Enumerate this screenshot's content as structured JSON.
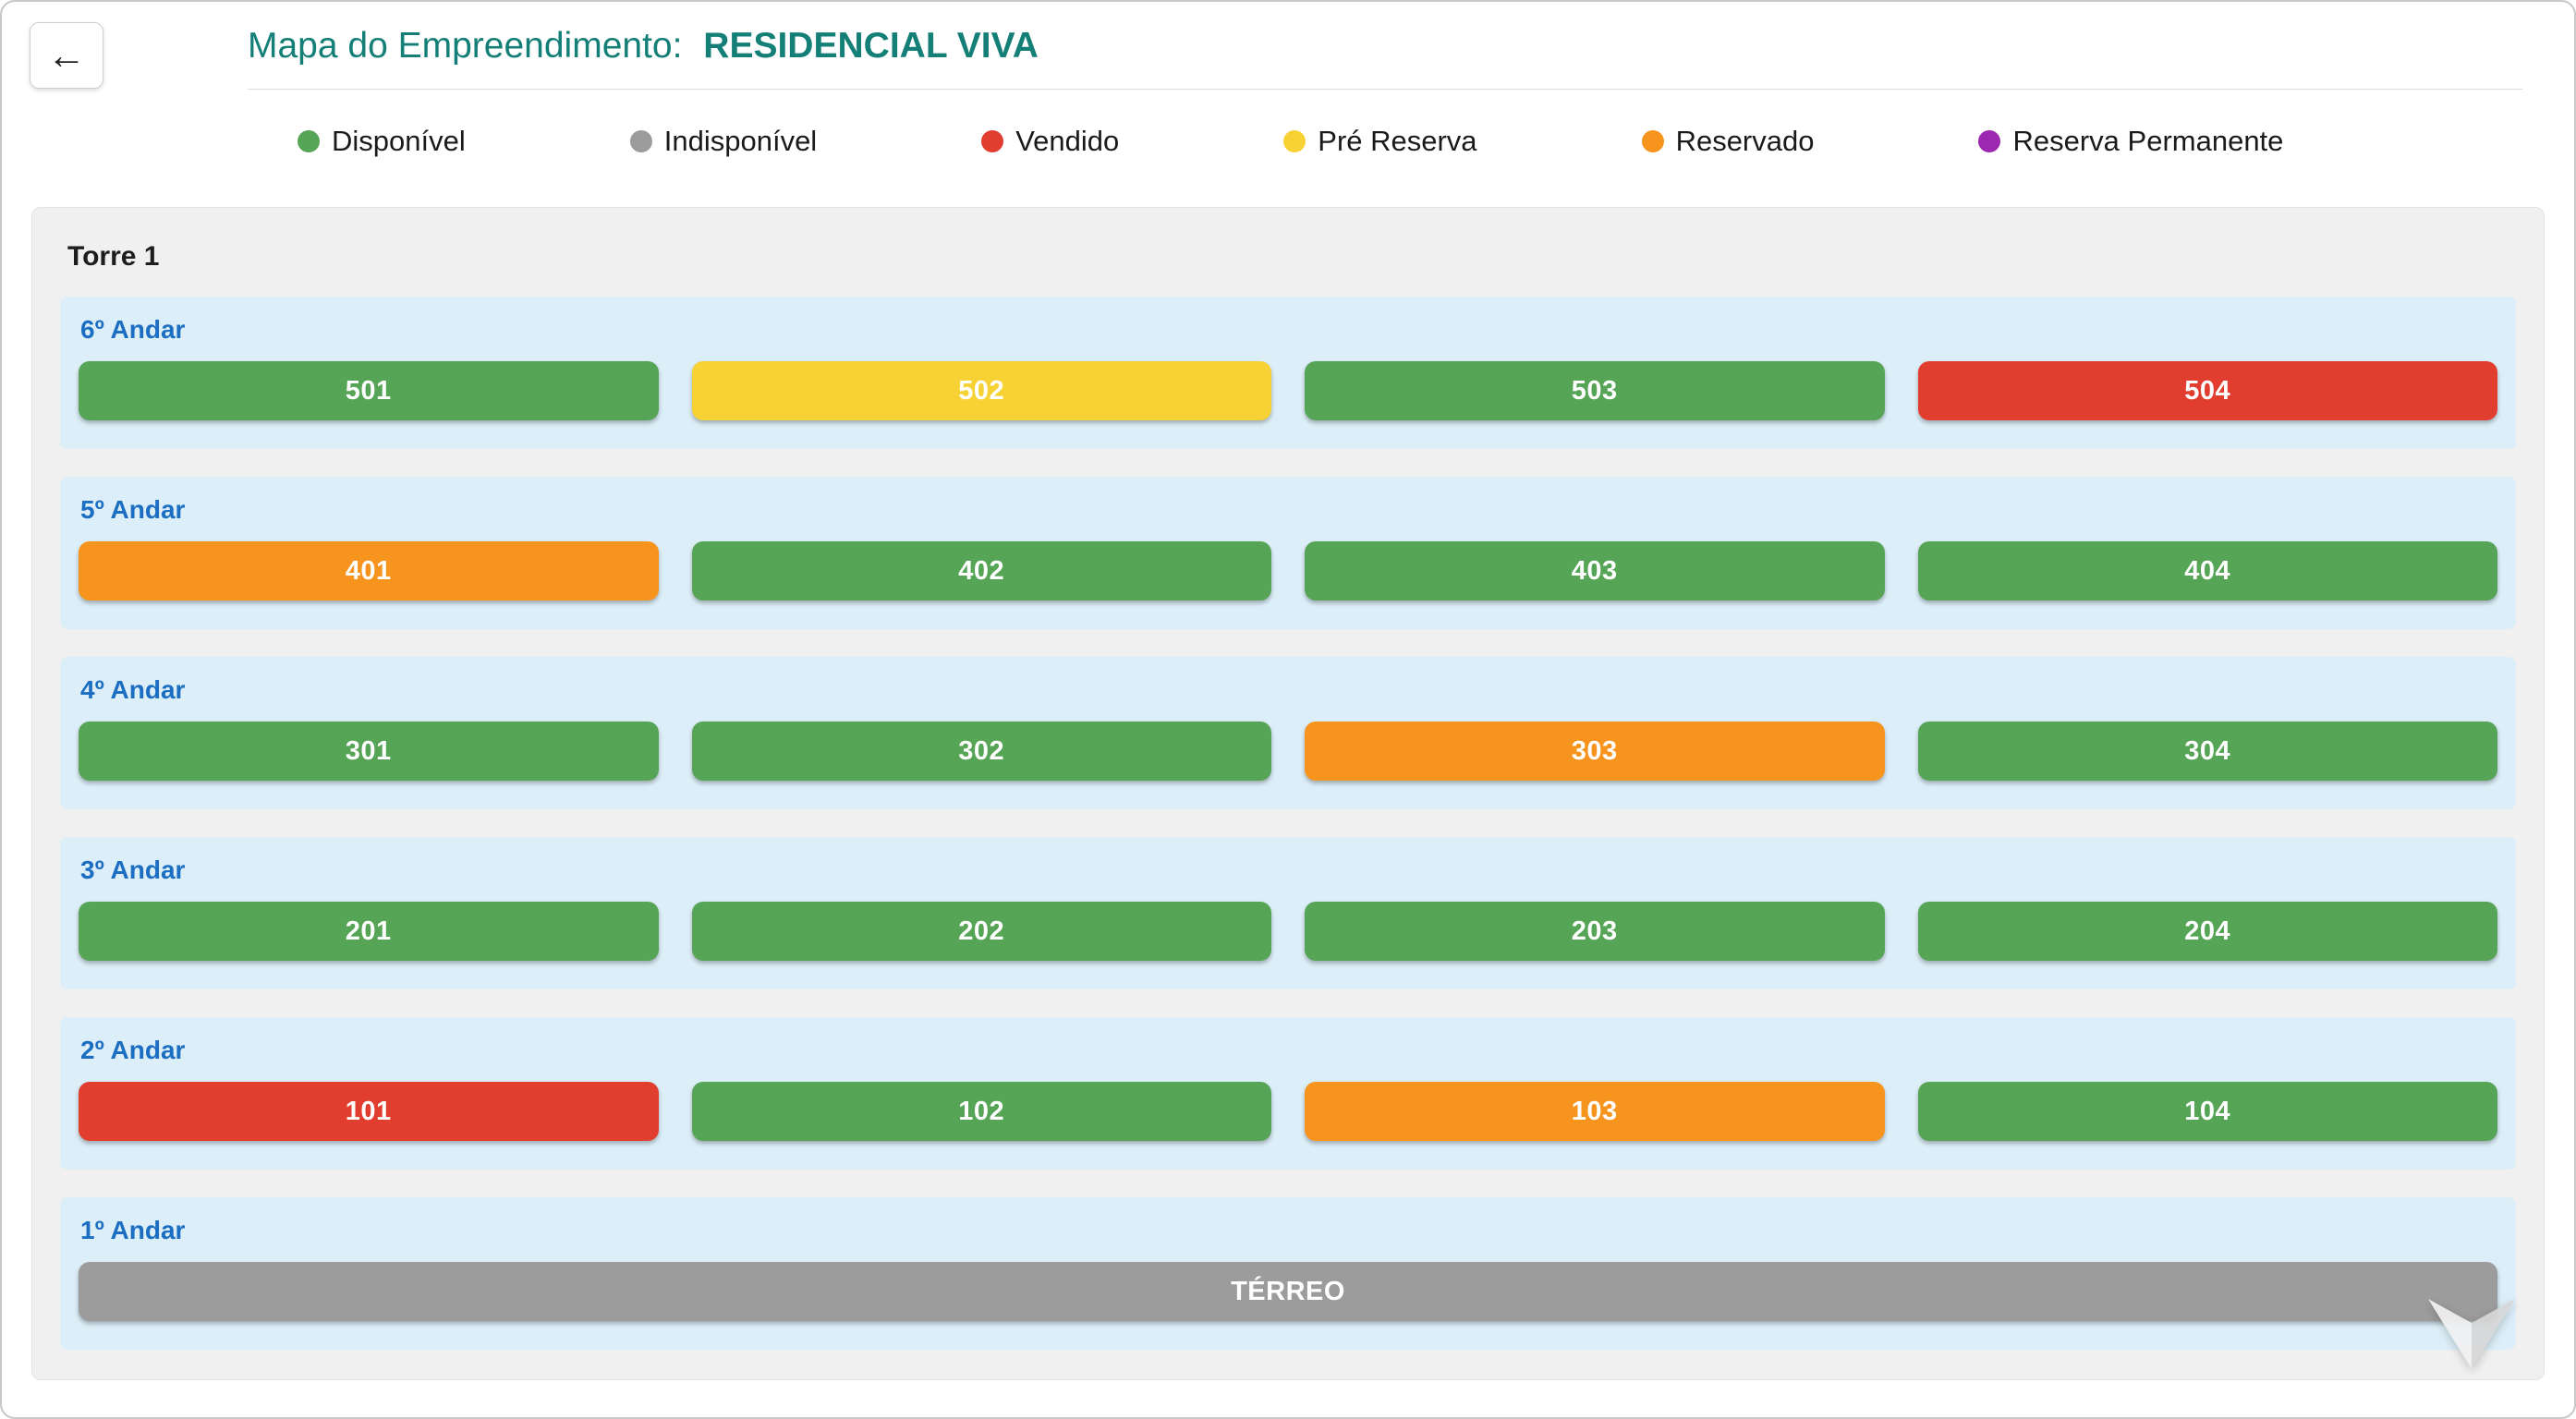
{
  "header": {
    "title_prefix": "Mapa do Empreendimento:",
    "title_name": "RESIDENCIAL VIVA"
  },
  "icons": {
    "back_arrow": "←",
    "scroll_hint": "chevron-down"
  },
  "legend": {
    "items": [
      {
        "label": "Disponível",
        "status": "disponivel"
      },
      {
        "label": "Indisponível",
        "status": "indisponivel"
      },
      {
        "label": "Vendido",
        "status": "vendido"
      },
      {
        "label": "Pré Reserva",
        "status": "pre_reserva"
      },
      {
        "label": "Reservado",
        "status": "reservado"
      },
      {
        "label": "Reserva Permanente",
        "status": "reserva_permanente"
      }
    ]
  },
  "status_colors": {
    "disponivel": "#56a456",
    "indisponivel": "#9c9c9c",
    "vendido": "#e23e30",
    "pre_reserva": "#f6d235",
    "reservado": "#f7941e",
    "reserva_permanente": "#9c27b0"
  },
  "tower": {
    "name": "Torre 1",
    "floors": [
      {
        "label": "6º Andar",
        "units": [
          {
            "number": "501",
            "status": "disponivel"
          },
          {
            "number": "502",
            "status": "pre_reserva"
          },
          {
            "number": "503",
            "status": "disponivel"
          },
          {
            "number": "504",
            "status": "vendido"
          }
        ]
      },
      {
        "label": "5º Andar",
        "units": [
          {
            "number": "401",
            "status": "reservado"
          },
          {
            "number": "402",
            "status": "disponivel"
          },
          {
            "number": "403",
            "status": "disponivel"
          },
          {
            "number": "404",
            "status": "disponivel"
          }
        ]
      },
      {
        "label": "4º Andar",
        "units": [
          {
            "number": "301",
            "status": "disponivel"
          },
          {
            "number": "302",
            "status": "disponivel"
          },
          {
            "number": "303",
            "status": "reservado"
          },
          {
            "number": "304",
            "status": "disponivel"
          }
        ]
      },
      {
        "label": "3º Andar",
        "units": [
          {
            "number": "201",
            "status": "disponivel"
          },
          {
            "number": "202",
            "status": "disponivel"
          },
          {
            "number": "203",
            "status": "disponivel"
          },
          {
            "number": "204",
            "status": "disponivel"
          }
        ]
      },
      {
        "label": "2º Andar",
        "units": [
          {
            "number": "101",
            "status": "vendido"
          },
          {
            "number": "102",
            "status": "disponivel"
          },
          {
            "number": "103",
            "status": "reservado"
          },
          {
            "number": "104",
            "status": "disponivel"
          }
        ]
      },
      {
        "label": "1º Andar",
        "units": [
          {
            "number": "TÉRREO",
            "status": "indisponivel"
          }
        ]
      }
    ]
  }
}
